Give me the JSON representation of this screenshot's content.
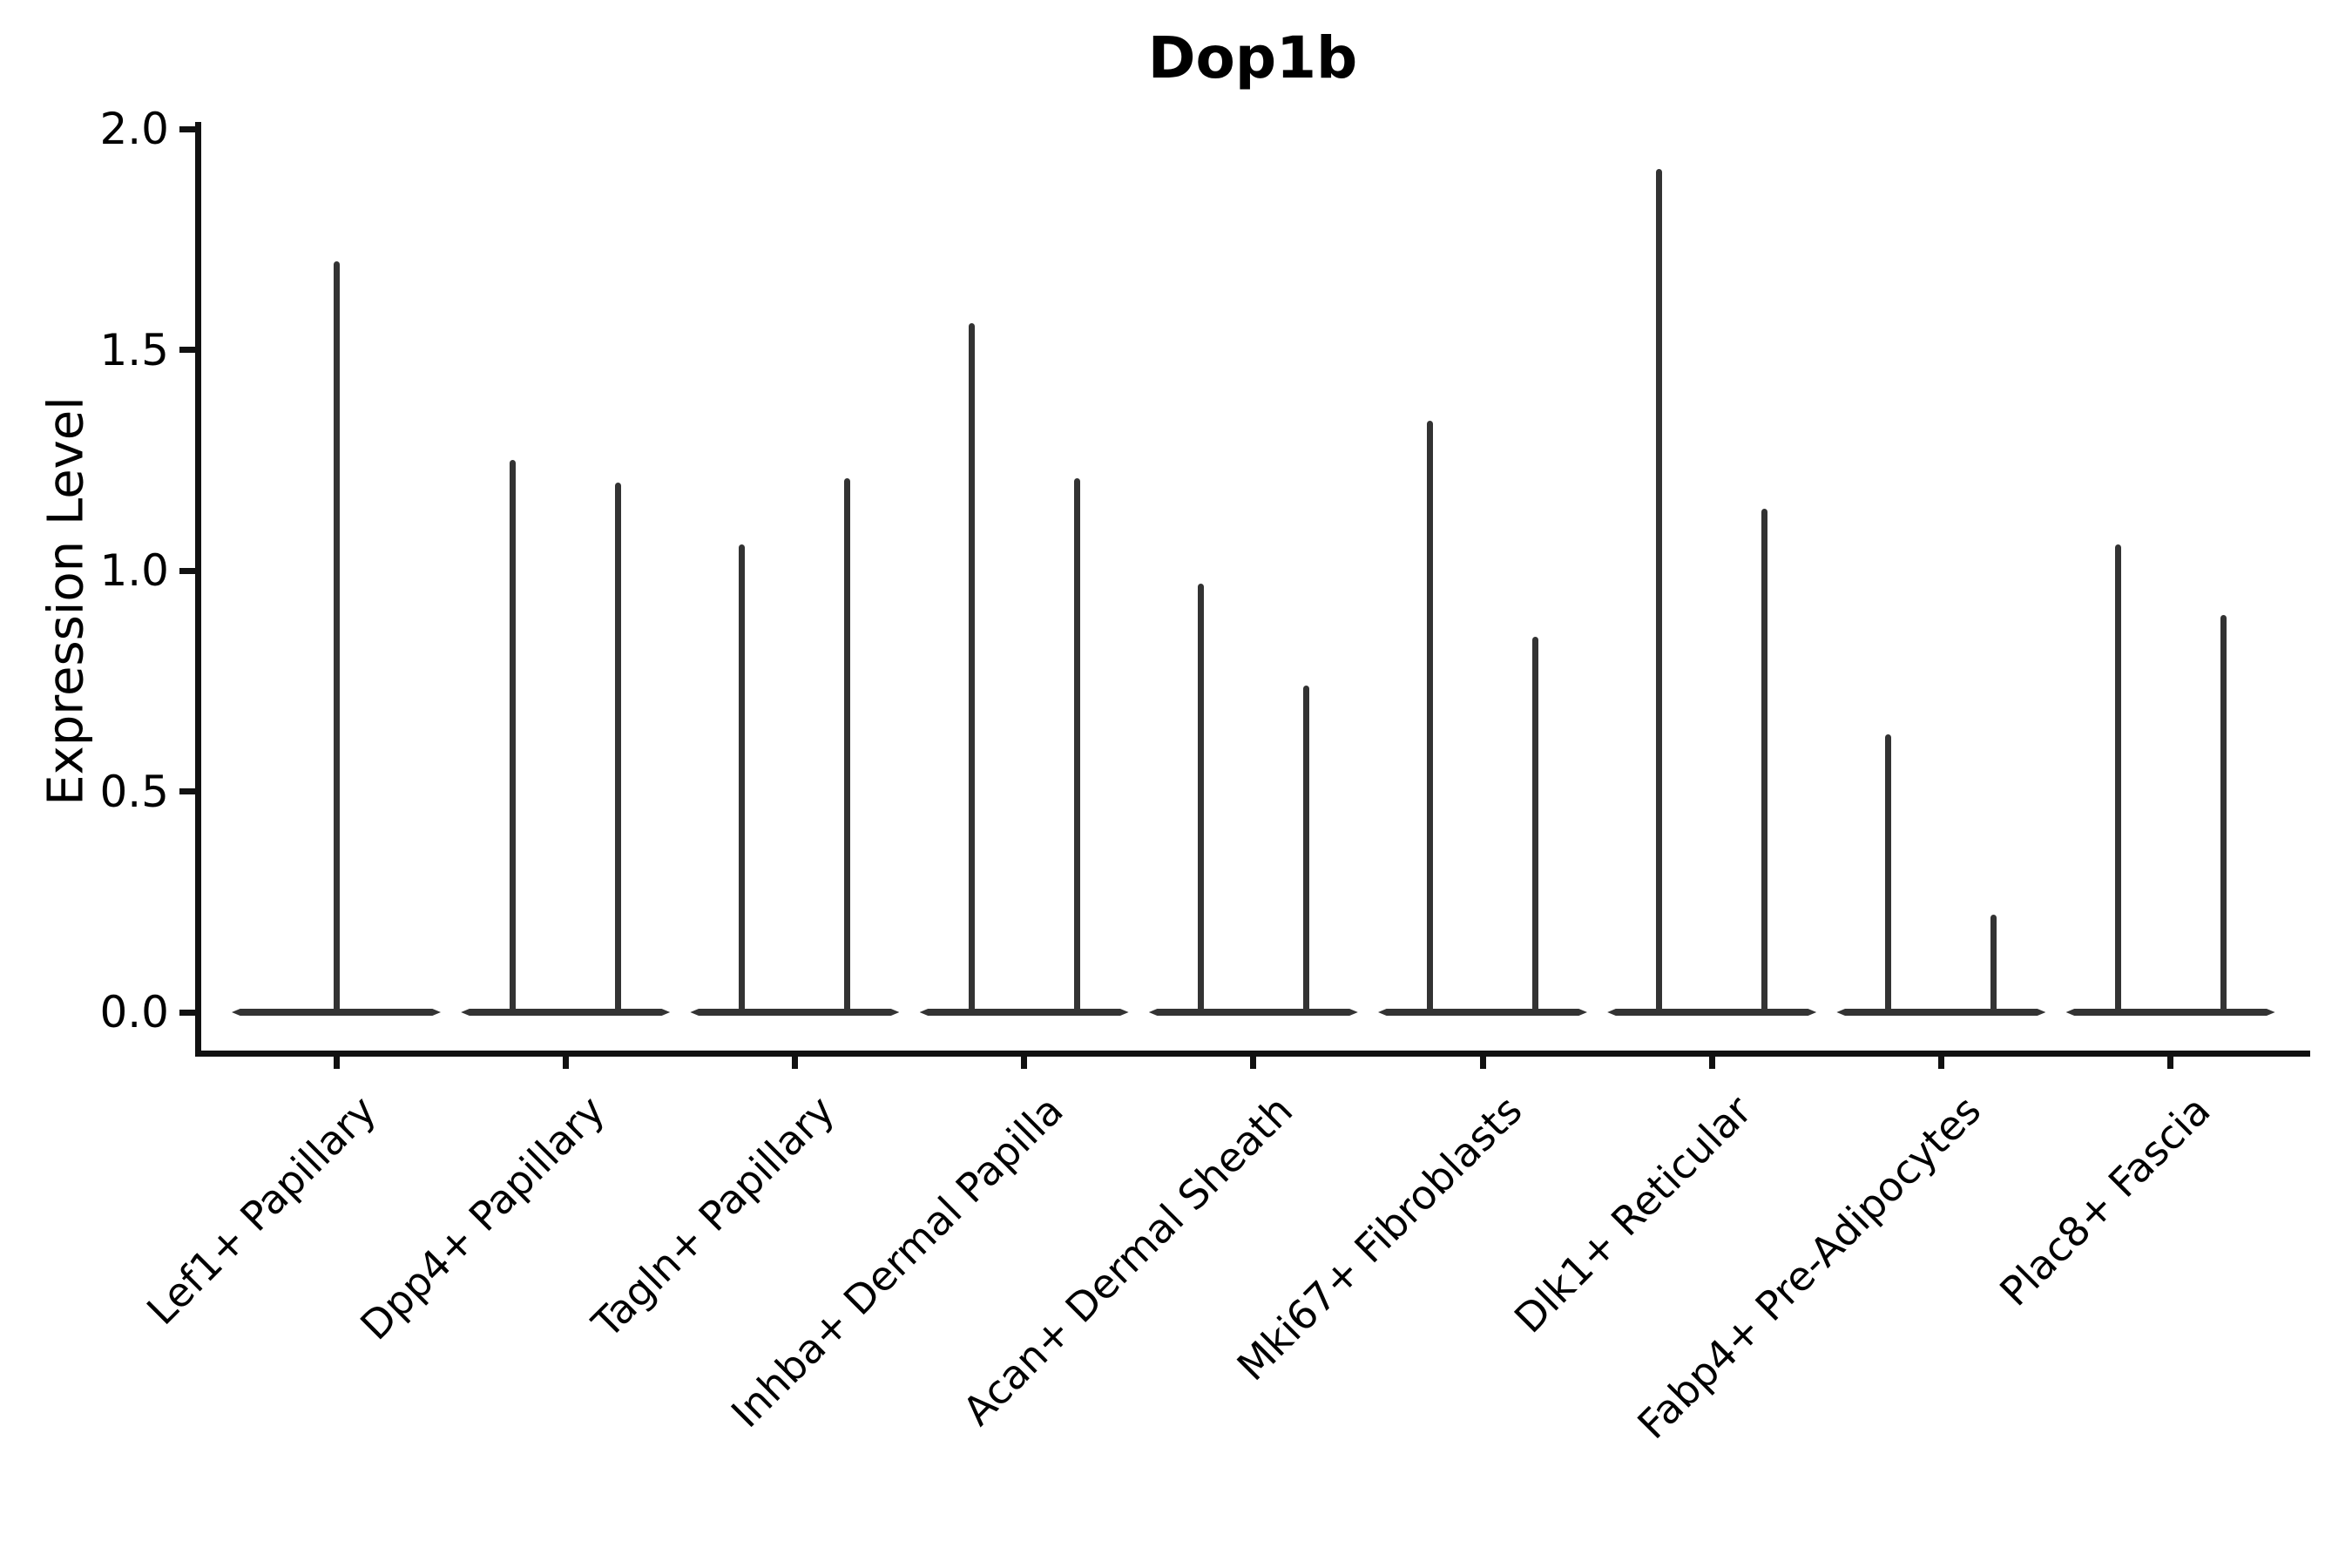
{
  "figure": {
    "title": "Dop1b",
    "ylabel": "Expression Level"
  },
  "chart_data": {
    "type": "violin",
    "title": "Dop1b",
    "xlabel": "",
    "ylabel": "Expression Level",
    "ylim": [
      0.0,
      2.0
    ],
    "ytick_labels": [
      "0.0",
      "0.5",
      "1.0",
      "1.5",
      "2.0"
    ],
    "ytick_values": [
      0.0,
      0.5,
      1.0,
      1.5,
      2.0
    ],
    "grid": false,
    "legend": false,
    "categories": [
      "Lef1+ Papillary",
      "Dpp4+ Papillary",
      "Tagln+ Papillary",
      "Inhba+ Dermal Papilla",
      "Acan+ Dermal Sheath",
      "Mki67+ Fibroblasts",
      "Dlk1+ Reticular",
      "Fabp4+ Pre-Adipocytes",
      "Plac8+ Fascia"
    ],
    "description": "Violin plot of Dop1b expression; most cells at 0 (wide flat base bar per group) with thin density spikes up to the max expression value. Each category holds two side-by-side violins except the first, which has one full-width violin.",
    "violins": [
      {
        "category": "Lef1+ Papillary",
        "peaks": [
          1.7
        ]
      },
      {
        "category": "Dpp4+ Papillary",
        "peaks": [
          1.25,
          1.2
        ]
      },
      {
        "category": "Tagln+ Papillary",
        "peaks": [
          1.06,
          1.21
        ]
      },
      {
        "category": "Inhba+ Dermal Papilla",
        "peaks": [
          1.56,
          1.21
        ]
      },
      {
        "category": "Acan+ Dermal Sheath",
        "peaks": [
          0.97,
          0.74
        ]
      },
      {
        "category": "Mki67+ Fibroblasts",
        "peaks": [
          1.34,
          0.85
        ]
      },
      {
        "category": "Dlk1+ Reticular",
        "peaks": [
          1.91,
          1.14
        ]
      },
      {
        "category": "Fabp4+ Pre-Adipocytes",
        "peaks": [
          0.63,
          0.22
        ]
      },
      {
        "category": "Plac8+ Fascia",
        "peaks": [
          1.06,
          0.9
        ]
      }
    ],
    "colors": {
      "violin": "#333333",
      "axis": "#111111",
      "text": "#000000",
      "background": "#ffffff"
    }
  }
}
